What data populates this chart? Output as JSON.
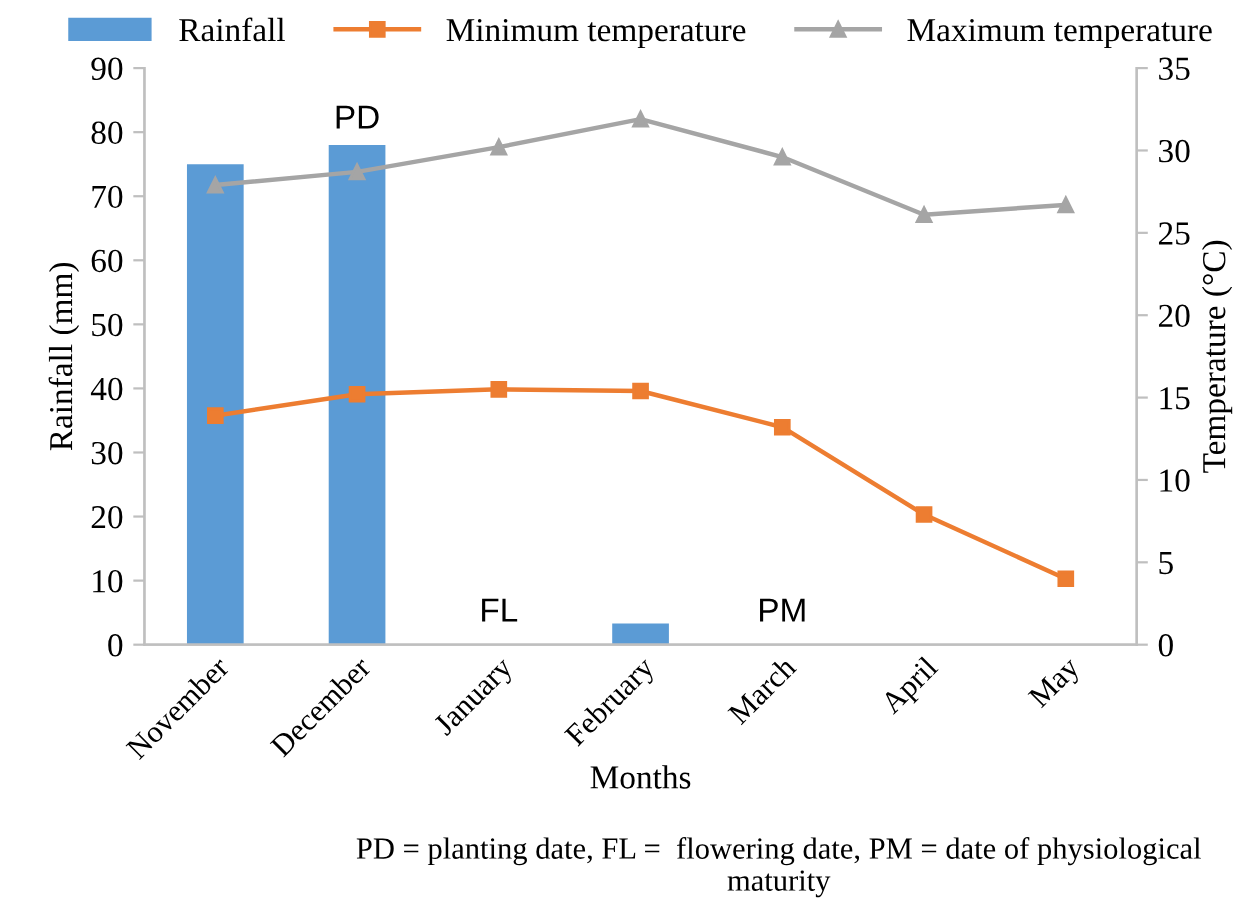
{
  "chart_data": {
    "type": "bar",
    "xlabel": "Months",
    "ylabel": "Rainfall (mm)",
    "y2label": "Temperature (°C)",
    "categories": [
      "November",
      "December",
      "January",
      "February",
      "March",
      "April",
      "May"
    ],
    "series": [
      {
        "name": "Rainfall",
        "color": "#5b9bd5",
        "values": [
          75,
          78,
          0,
          3.3,
          0,
          0,
          0
        ]
      },
      {
        "name": "Minimum temperature",
        "type": "line",
        "axis": "y2",
        "color": "#ed7d31",
        "marker": "square",
        "values": [
          13.9,
          15.2,
          15.5,
          15.4,
          13.2,
          7.9,
          4.0
        ]
      },
      {
        "name": "Maximum temperature",
        "type": "line",
        "axis": "y2",
        "color": "#a5a5a5",
        "marker": "triangle",
        "values": [
          27.9,
          28.7,
          30.2,
          31.9,
          29.6,
          26.1,
          26.7
        ]
      }
    ],
    "ylim": [
      0,
      90
    ],
    "yticks": [
      0,
      10,
      20,
      30,
      40,
      50,
      60,
      70,
      80,
      90
    ],
    "y2lim": [
      0,
      35
    ],
    "y2ticks": [
      0,
      5,
      10,
      15,
      20,
      25,
      30,
      35
    ],
    "grid": false,
    "legend": "top",
    "annotations": [
      "PD",
      "FL",
      "PM",
      "PD = planting date, FL =  flowering date, PM = date of physiological maturity"
    ]
  }
}
